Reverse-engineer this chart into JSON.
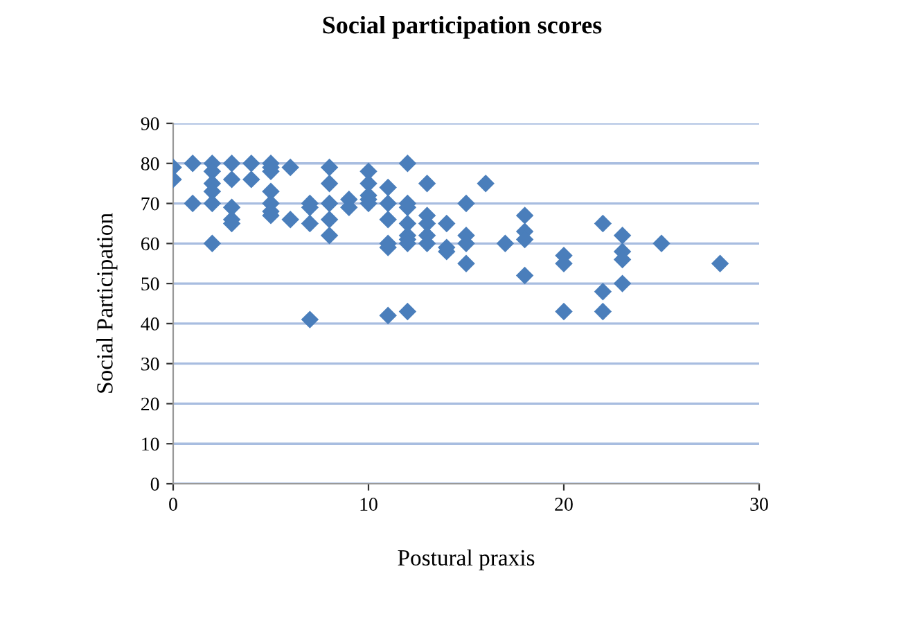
{
  "chart_data": {
    "type": "scatter",
    "title": "Social participation scores",
    "xlabel": "Postural praxis",
    "ylabel": "Social Participation",
    "x": [
      0,
      0,
      1,
      1,
      2,
      2,
      2,
      2,
      2,
      2,
      3,
      3,
      3,
      3,
      3,
      4,
      4,
      5,
      5,
      5,
      5,
      5,
      5,
      5,
      6,
      6,
      7,
      7,
      7,
      7,
      8,
      8,
      8,
      8,
      8,
      9,
      9,
      10,
      10,
      10,
      10,
      10,
      11,
      11,
      11,
      11,
      11,
      11,
      12,
      12,
      12,
      12,
      12,
      12,
      12,
      12,
      13,
      13,
      13,
      13,
      13,
      14,
      14,
      14,
      15,
      15,
      15,
      15,
      16,
      17,
      18,
      18,
      18,
      18,
      20,
      20,
      20,
      22,
      22,
      22,
      23,
      23,
      23,
      23,
      25,
      28
    ],
    "series": [
      {
        "color": "#4a7ebb",
        "values": [
          79,
          76,
          80,
          70,
          80,
          78,
          75,
          73,
          70,
          60,
          80,
          76,
          69,
          66,
          65,
          80,
          76,
          80,
          79,
          78,
          73,
          70,
          68,
          67,
          79,
          66,
          70,
          69,
          65,
          41,
          79,
          75,
          70,
          66,
          62,
          71,
          69,
          78,
          75,
          72,
          71,
          70,
          74,
          70,
          66,
          60,
          59,
          42,
          80,
          70,
          69,
          65,
          62,
          61,
          60,
          43,
          75,
          67,
          65,
          62,
          60,
          65,
          59,
          58,
          70,
          62,
          60,
          55,
          75,
          60,
          67,
          63,
          61,
          52,
          57,
          55,
          43,
          65,
          48,
          43,
          62,
          58,
          56,
          50,
          60,
          55
        ]
      }
    ],
    "xlim": [
      0,
      30
    ],
    "xticks": [
      0,
      10,
      20,
      30
    ],
    "ylim": [
      0,
      90
    ],
    "yticks": [
      0,
      10,
      20,
      30,
      40,
      50,
      60,
      70,
      80,
      90
    ],
    "grid": "y",
    "marker": "diamond",
    "legend": false
  }
}
